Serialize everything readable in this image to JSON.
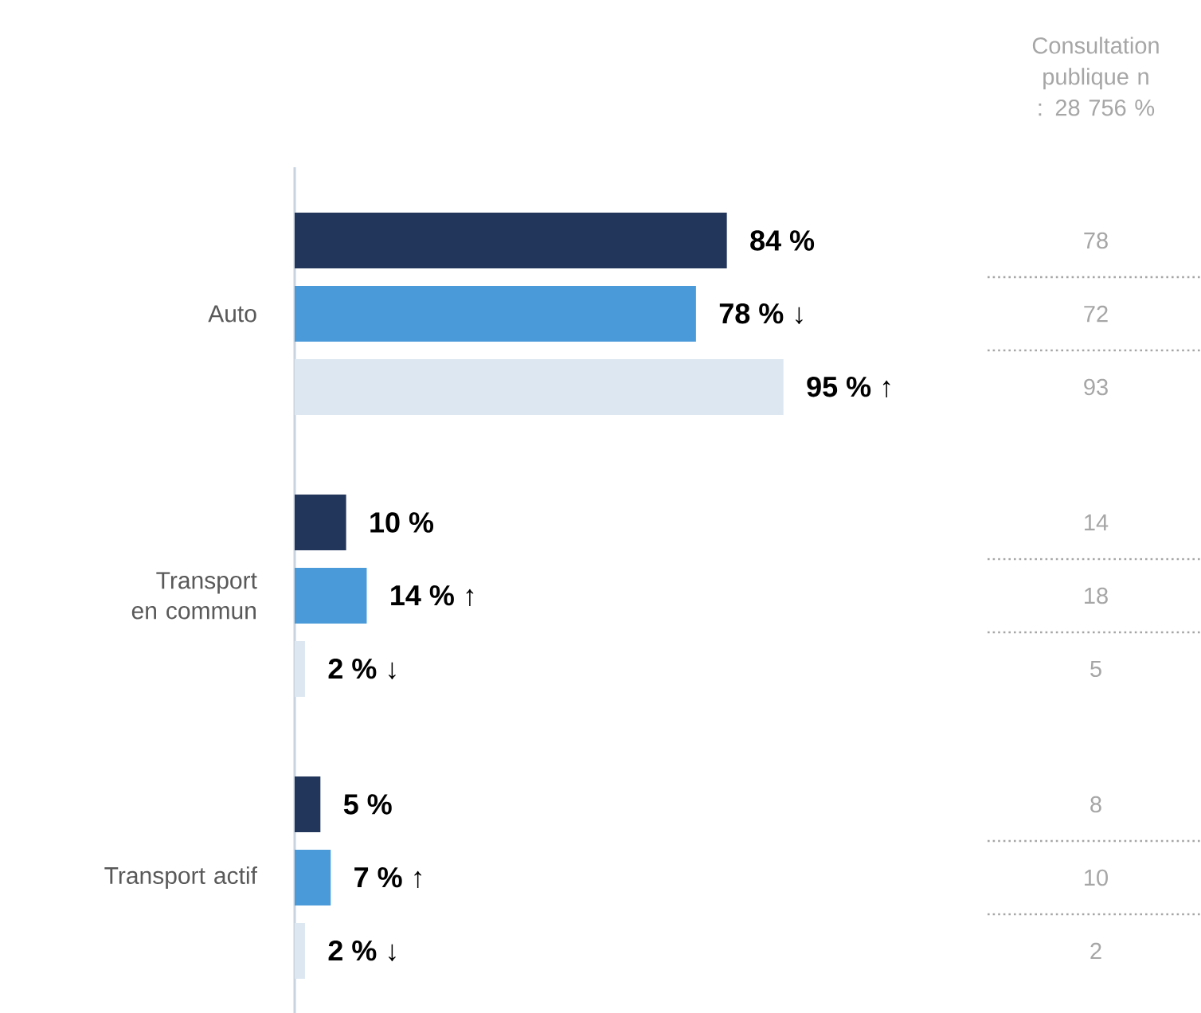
{
  "chart_data": {
    "type": "bar",
    "orientation": "horizontal",
    "categories": [
      "Auto",
      "Transport en commun",
      "Transport actif"
    ],
    "series": [
      {
        "color": "#22355a",
        "values": [
          84,
          10,
          5
        ],
        "value_labels": [
          "**84 %**",
          "**10 %**",
          "**5 %**"
        ]
      },
      {
        "color": "#4a9ad9",
        "values": [
          78,
          14,
          7
        ],
        "value_labels": [
          "**78 %** ↓",
          "**14 %** ↑",
          "**7 %** ↑"
        ]
      },
      {
        "color": "#dce7f1",
        "values": [
          95,
          2,
          2
        ],
        "value_labels": [
          "**95 %** ↑",
          "**2 %** ↓",
          "**2 %** ↓"
        ]
      }
    ],
    "annotations": [
      "Consultation publique n : 28 756 %",
      "78",
      "72",
      "93",
      "14",
      "18",
      "5",
      "8",
      "10",
      "2"
    ]
  }
}
